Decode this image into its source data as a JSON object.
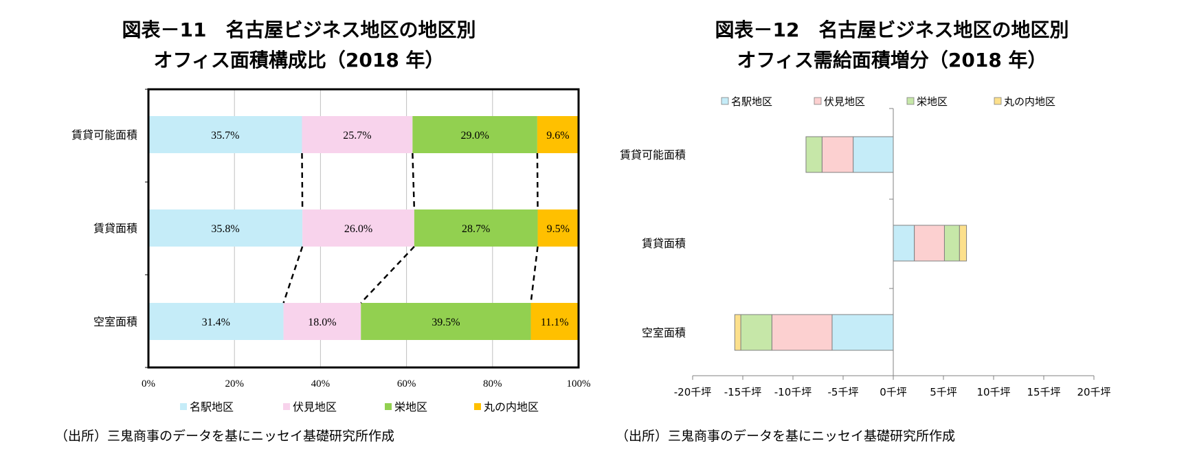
{
  "chart_data": [
    {
      "type": "bar",
      "stacked": "percent",
      "orientation": "horizontal",
      "title": "図表－11　名古屋ビジネス地区の地区別",
      "subtitle": "オフィス面積構成比（2018 年）",
      "categories": [
        "賃貸可能面積",
        "賃貸面積",
        "空室面積"
      ],
      "series": [
        {
          "name": "名駅地区",
          "color": "#c5ecf8",
          "values": [
            35.7,
            35.8,
            31.4
          ],
          "labels": [
            "35.7%",
            "35.8%",
            "31.4%"
          ]
        },
        {
          "name": "伏見地区",
          "color": "#f8d3ec",
          "values": [
            25.7,
            26.0,
            18.0
          ],
          "labels": [
            "25.7%",
            "26.0%",
            "18.0%"
          ]
        },
        {
          "name": "栄地区",
          "color": "#92d050",
          "values": [
            29.0,
            28.7,
            39.5
          ],
          "labels": [
            "29.0%",
            "28.7%",
            "39.5%"
          ]
        },
        {
          "name": "丸の内地区",
          "color": "#ffc000",
          "values": [
            9.6,
            9.5,
            11.1
          ],
          "labels": [
            "9.6%",
            "9.5%",
            "11.1%"
          ]
        }
      ],
      "xlim": [
        0,
        100
      ],
      "xticks": [
        "0%",
        "20%",
        "40%",
        "60%",
        "80%",
        "100%"
      ],
      "connector_lines": "dashed",
      "legend": "bottom",
      "grid": true,
      "source": "（出所）三鬼商事のデータを基にニッセイ基礎研究所作成"
    },
    {
      "type": "bar",
      "stacked": true,
      "orientation": "horizontal",
      "title": "図表－12　名古屋ビジネス地区の地区別",
      "subtitle": "オフィス需給面積増分（2018 年）",
      "categories": [
        "賃貸可能面積",
        "賃貸面積",
        "空室面積"
      ],
      "series": [
        {
          "name": "名駅地区",
          "color": "#c5ecf8",
          "values": [
            -4.0,
            2.1,
            -6.1
          ]
        },
        {
          "name": "伏見地区",
          "color": "#fcd0d0",
          "values": [
            -3.1,
            3.0,
            -6.0
          ]
        },
        {
          "name": "栄地区",
          "color": "#c6e7a8",
          "values": [
            -1.6,
            1.5,
            -3.1
          ]
        },
        {
          "name": "丸の内地区",
          "color": "#fce08c",
          "values": [
            0,
            0.7,
            -0.6
          ]
        }
      ],
      "unit": "千坪",
      "xlim": [
        -20,
        20
      ],
      "xticks": [
        "-20千坪",
        "-15千坪",
        "-10千坪",
        "-5千坪",
        "0千坪",
        "5千坪",
        "10千坪",
        "15千坪",
        "20千坪"
      ],
      "legend": "top",
      "grid": false,
      "source": "（出所）三鬼商事のデータを基にニッセイ基礎研究所作成"
    }
  ]
}
